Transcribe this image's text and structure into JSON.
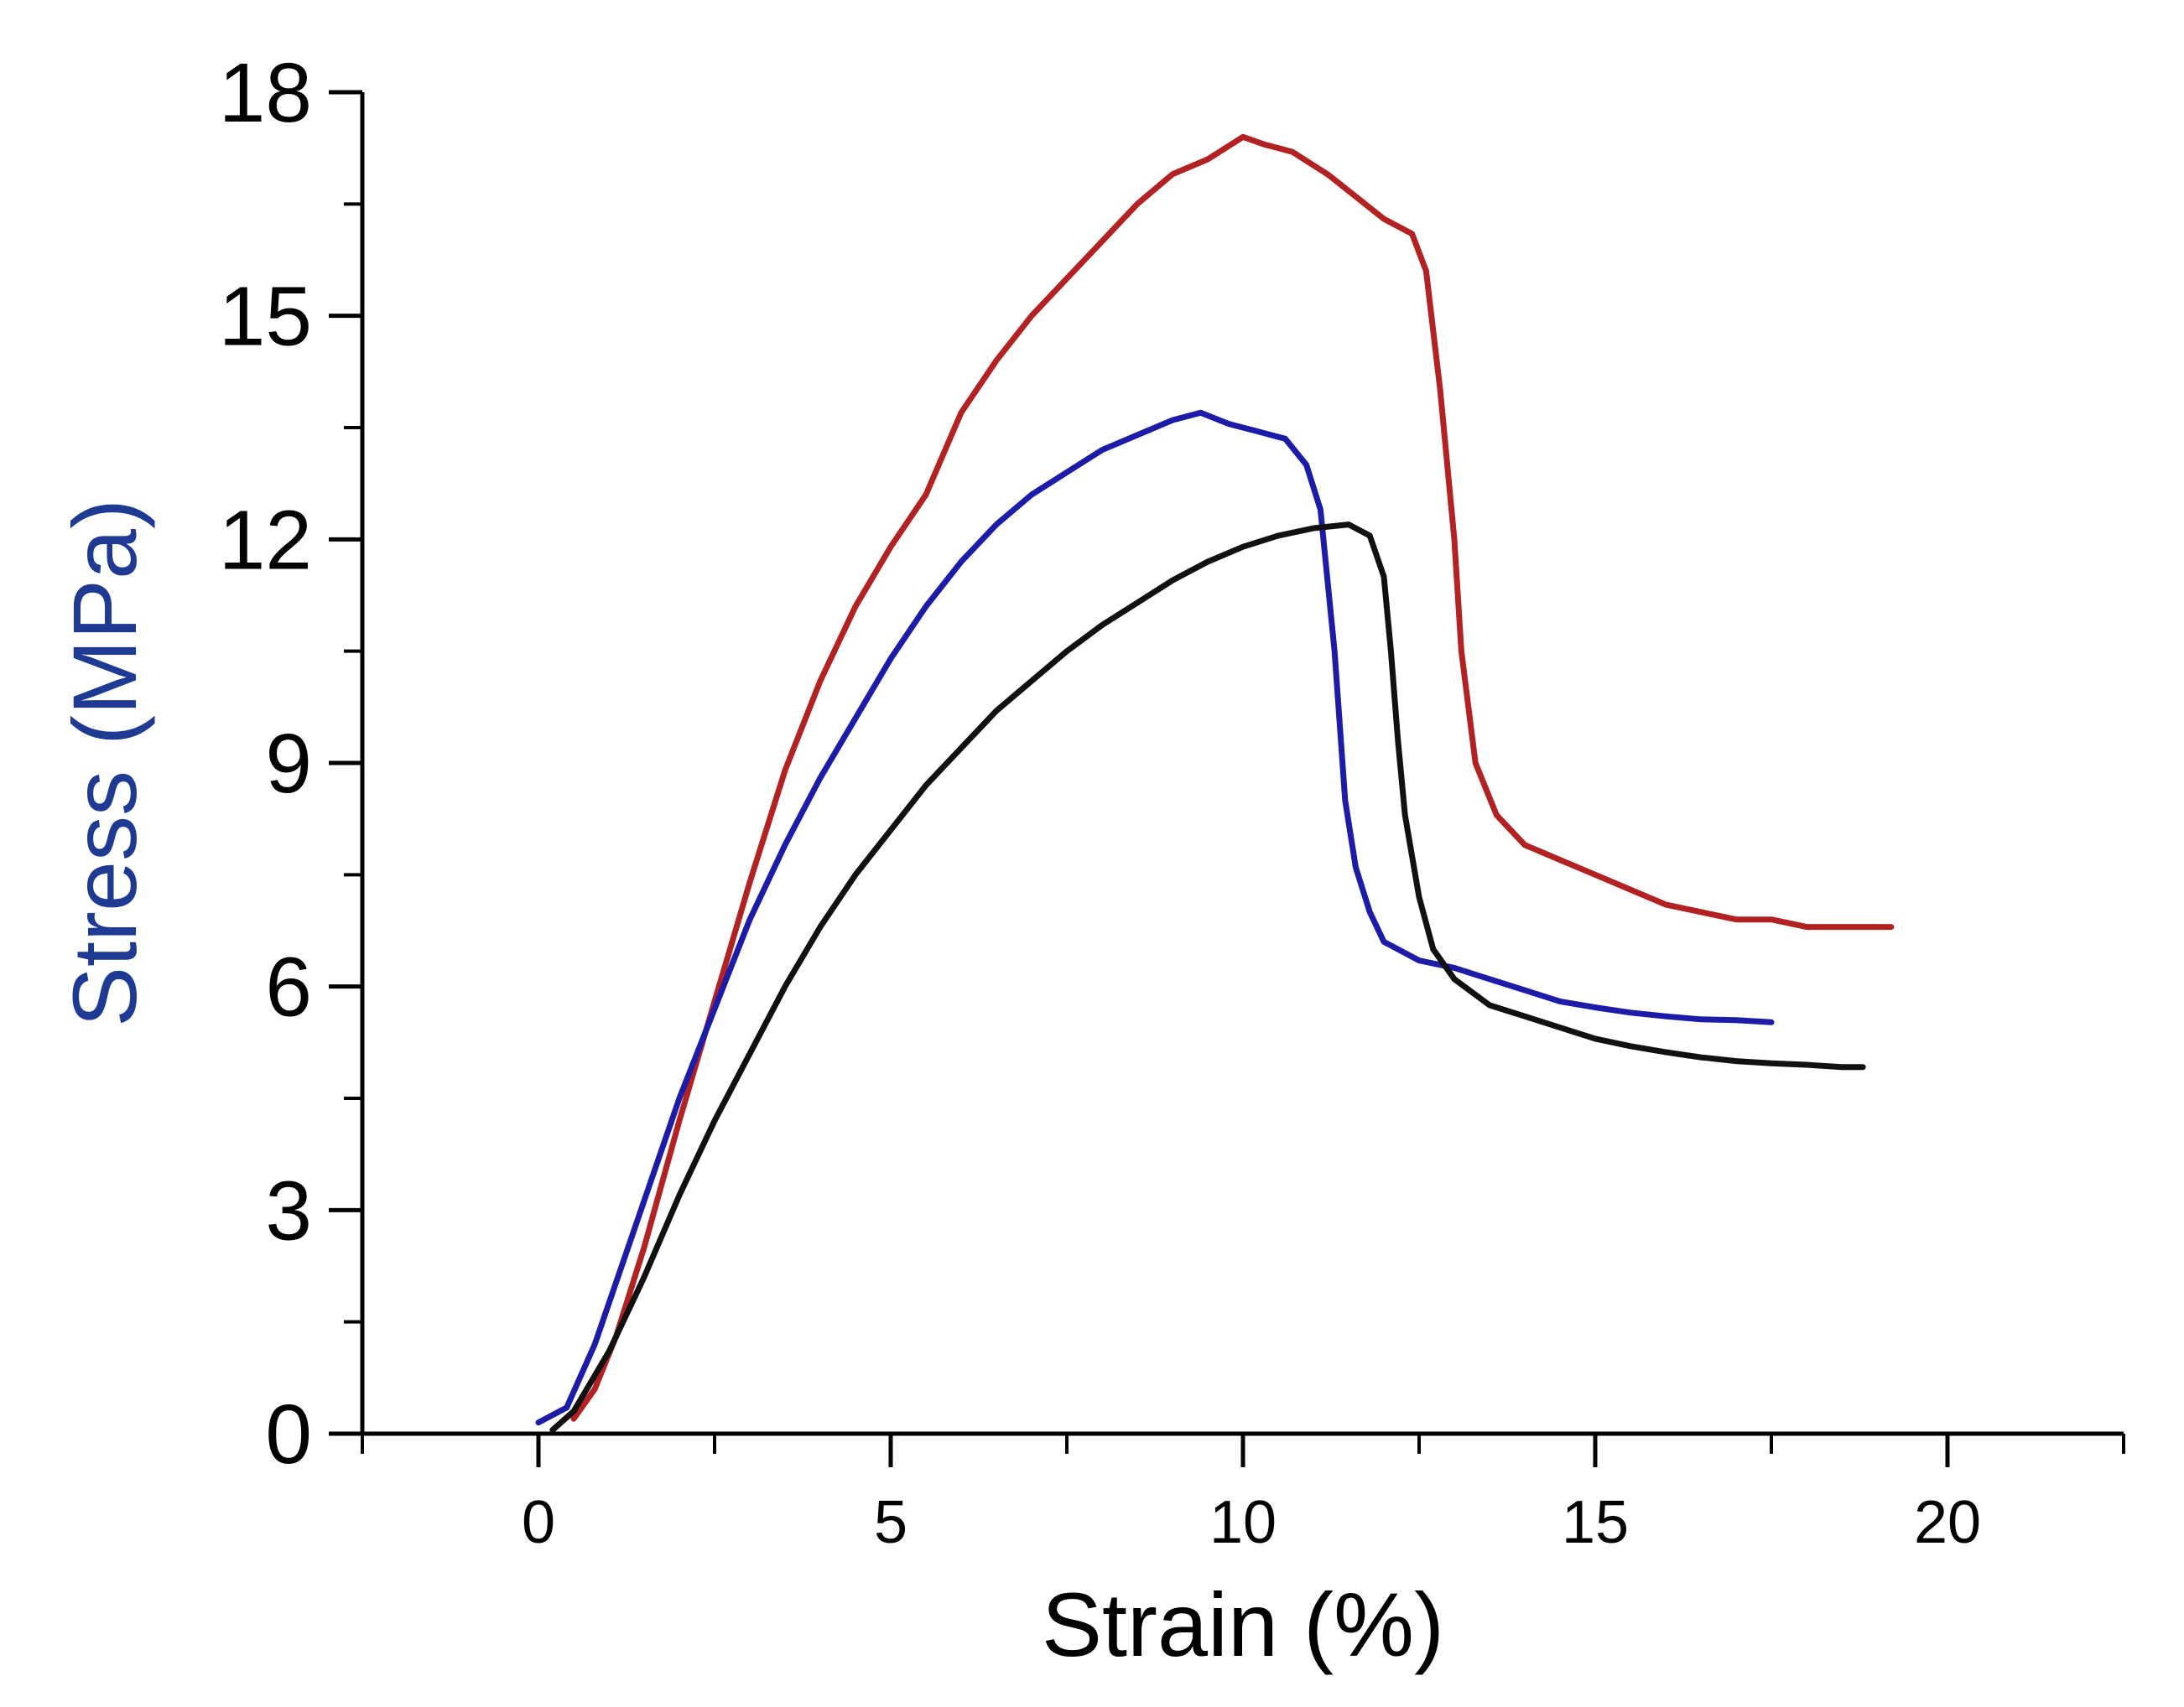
{
  "chart_data": {
    "type": "line",
    "title": "",
    "xlabel": "Strain (%)",
    "ylabel": "Stress (MPa)",
    "xlim": [
      -2.5,
      22.5
    ],
    "ylim": [
      0,
      18
    ],
    "x_ticks": [
      0,
      5,
      10,
      15,
      20
    ],
    "x_tick_labels": [
      "0",
      "5",
      "10",
      "15",
      "20"
    ],
    "y_ticks": [
      0,
      3,
      6,
      9,
      12,
      15,
      18
    ],
    "y_tick_labels": [
      "0",
      "3",
      "6",
      "9",
      "12",
      "15",
      "18"
    ],
    "grid": false,
    "legend": "none",
    "colors": {
      "axis": "#000000",
      "ylabel": "#1f3a93",
      "ylabel_accent": "#b8860b"
    },
    "series": [
      {
        "name": "red",
        "color": "#b22222",
        "x": [
          0.5,
          0.8,
          1.1,
          1.5,
          2.0,
          2.5,
          3.0,
          3.5,
          4.0,
          4.5,
          5.0,
          5.5,
          6.0,
          6.5,
          7.0,
          7.5,
          8.0,
          8.5,
          9.0,
          9.5,
          10.0,
          10.3,
          10.7,
          11.2,
          11.6,
          12.0,
          12.4,
          12.6,
          12.8,
          13.0,
          13.1,
          13.3,
          13.6,
          14.0,
          14.5,
          15.0,
          15.5,
          16.0,
          16.5,
          17.0,
          17.5,
          18.0,
          18.5,
          19.2
        ],
        "y": [
          0.2,
          0.6,
          1.3,
          2.5,
          4.2,
          5.8,
          7.4,
          8.9,
          10.1,
          11.1,
          11.9,
          12.6,
          13.7,
          14.4,
          15.0,
          15.5,
          16.0,
          16.5,
          16.9,
          17.1,
          17.4,
          17.3,
          17.2,
          16.9,
          16.6,
          16.3,
          16.1,
          15.6,
          14.0,
          12.0,
          10.5,
          9.0,
          8.3,
          7.9,
          7.7,
          7.5,
          7.3,
          7.1,
          7.0,
          6.9,
          6.9,
          6.8,
          6.8,
          6.8
        ]
      },
      {
        "name": "blue",
        "color": "#1c1ca8",
        "x": [
          0.0,
          0.4,
          0.8,
          1.2,
          1.6,
          2.0,
          2.5,
          3.0,
          3.5,
          4.0,
          4.5,
          5.0,
          5.5,
          6.0,
          6.5,
          7.0,
          7.5,
          8.0,
          8.5,
          9.0,
          9.4,
          9.8,
          10.2,
          10.6,
          10.9,
          11.1,
          11.3,
          11.45,
          11.6,
          11.8,
          12.0,
          12.5,
          13.0,
          13.5,
          14.0,
          14.5,
          15.0,
          15.5,
          16.0,
          16.5,
          17.0,
          17.5
        ],
        "y": [
          0.15,
          0.35,
          1.2,
          2.3,
          3.4,
          4.5,
          5.7,
          6.9,
          7.9,
          8.8,
          9.6,
          10.4,
          11.1,
          11.7,
          12.2,
          12.6,
          12.9,
          13.2,
          13.4,
          13.6,
          13.7,
          13.55,
          13.45,
          13.35,
          13.0,
          12.4,
          10.5,
          8.5,
          7.6,
          7.0,
          6.6,
          6.35,
          6.25,
          6.1,
          5.95,
          5.8,
          5.72,
          5.65,
          5.6,
          5.56,
          5.55,
          5.52
        ]
      },
      {
        "name": "black",
        "color": "#111111",
        "x": [
          0.2,
          0.5,
          1.0,
          1.5,
          2.0,
          2.5,
          3.0,
          3.5,
          4.0,
          4.5,
          5.0,
          5.5,
          6.0,
          6.5,
          7.0,
          7.5,
          8.0,
          8.5,
          9.0,
          9.5,
          10.0,
          10.5,
          11.0,
          11.5,
          11.8,
          12.0,
          12.1,
          12.2,
          12.3,
          12.5,
          12.7,
          13.0,
          13.5,
          14.0,
          14.5,
          15.0,
          15.5,
          16.0,
          16.5,
          17.0,
          17.5,
          18.0,
          18.5,
          18.8
        ],
        "y": [
          0.05,
          0.3,
          1.1,
          2.1,
          3.2,
          4.2,
          5.1,
          6.0,
          6.8,
          7.5,
          8.1,
          8.7,
          9.2,
          9.7,
          10.1,
          10.5,
          10.85,
          11.15,
          11.45,
          11.7,
          11.9,
          12.05,
          12.15,
          12.2,
          12.05,
          11.5,
          10.5,
          9.3,
          8.3,
          7.2,
          6.5,
          6.1,
          5.75,
          5.6,
          5.45,
          5.3,
          5.2,
          5.12,
          5.05,
          5.0,
          4.97,
          4.95,
          4.92,
          4.92
        ]
      }
    ]
  }
}
